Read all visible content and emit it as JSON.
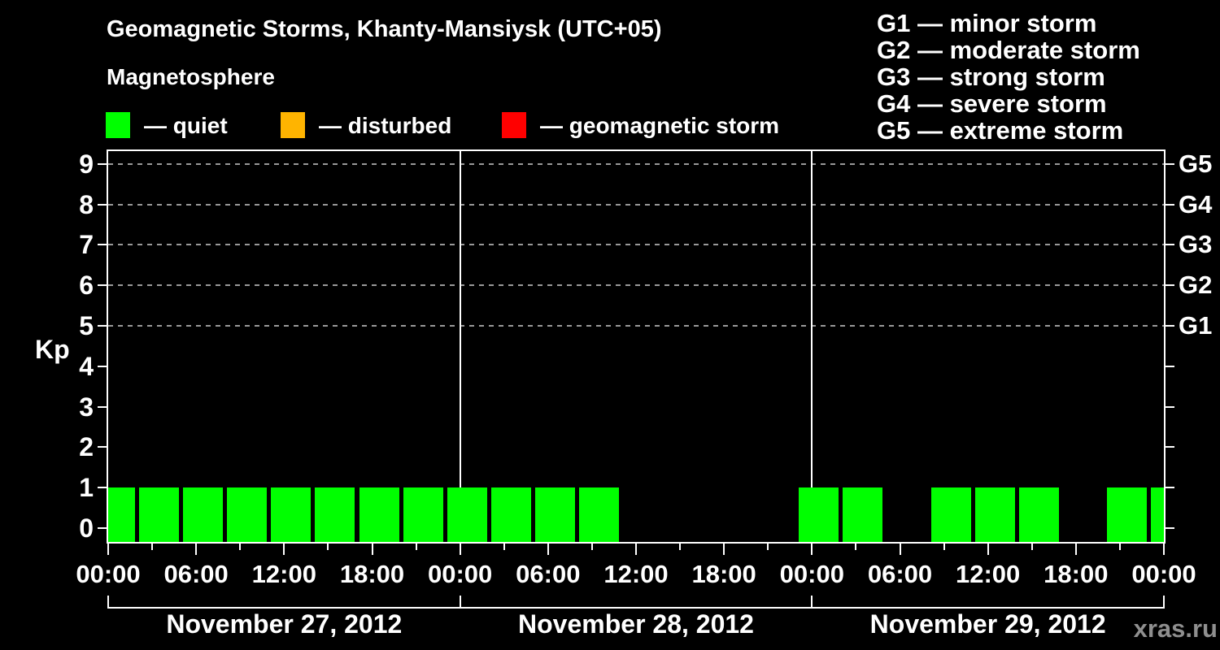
{
  "title": "Geomagnetic Storms, Khanty-Mansiysk (UTC+05)",
  "subtitle": "Magnetosphere",
  "y_axis_title": "Kp",
  "watermark": "xras.ru",
  "colors": {
    "background": "#000000",
    "axis": "#ffffff",
    "grid": "#999999",
    "quiet": "#00ff00",
    "disturbed": "#ffb400",
    "storm": "#ff0000",
    "watermark_gray": "#8f8f8f"
  },
  "status_legend": [
    {
      "status": "quiet",
      "label": "— quiet",
      "color": "#00ff00"
    },
    {
      "status": "disturbed",
      "label": "— disturbed",
      "color": "#ffb400"
    },
    {
      "status": "storm",
      "label": "— geomagnetic storm",
      "color": "#ff0000"
    }
  ],
  "g_scale_legend": [
    {
      "code": "G1",
      "label": "G1 — minor storm",
      "kp": 5
    },
    {
      "code": "G2",
      "label": "G2 — moderate storm",
      "kp": 6
    },
    {
      "code": "G3",
      "label": "G3 — strong storm",
      "kp": 7
    },
    {
      "code": "G4",
      "label": "G4 — severe storm",
      "kp": 8
    },
    {
      "code": "G5",
      "label": "G5 — extreme storm",
      "kp": 9
    }
  ],
  "chart_data": {
    "type": "bar",
    "title": "Geomagnetic Storms, Khanty-Mansiysk (UTC+05)",
    "ylabel": "Kp",
    "ylim": [
      -0.4,
      9.4
    ],
    "y_ticks": [
      0,
      1,
      2,
      3,
      4,
      5,
      6,
      7,
      8,
      9
    ],
    "gridlines_at_kp": [
      5,
      6,
      7,
      8,
      9
    ],
    "right_axis_g_labels": [
      {
        "label": "G1",
        "kp": 5
      },
      {
        "label": "G2",
        "kp": 6
      },
      {
        "label": "G3",
        "kp": 7
      },
      {
        "label": "G4",
        "kp": 8
      },
      {
        "label": "G5",
        "kp": 9
      }
    ],
    "x_hours_total": 72,
    "bar_interval_hours": 3,
    "x_minor_tick_hours": 3,
    "x_major_tick_hours": 6,
    "x_tick_labels": [
      "00:00",
      "06:00",
      "12:00",
      "18:00",
      "00:00",
      "06:00",
      "12:00",
      "18:00",
      "00:00",
      "06:00",
      "12:00",
      "18:00",
      "00:00"
    ],
    "days": [
      "November 27, 2012",
      "November 28, 2012",
      "November 29, 2012"
    ],
    "bars": [
      {
        "start_hour": 0,
        "kp": 1,
        "status": "quiet"
      },
      {
        "start_hour": 3,
        "kp": 1,
        "status": "quiet"
      },
      {
        "start_hour": 6,
        "kp": 1,
        "status": "quiet"
      },
      {
        "start_hour": 9,
        "kp": 1,
        "status": "quiet"
      },
      {
        "start_hour": 12,
        "kp": 1,
        "status": "quiet"
      },
      {
        "start_hour": 15,
        "kp": 1,
        "status": "quiet"
      },
      {
        "start_hour": 18,
        "kp": 1,
        "status": "quiet"
      },
      {
        "start_hour": 21,
        "kp": 1,
        "status": "quiet"
      },
      {
        "start_hour": 24,
        "kp": 1,
        "status": "quiet"
      },
      {
        "start_hour": 27,
        "kp": 1,
        "status": "quiet"
      },
      {
        "start_hour": 30,
        "kp": 1,
        "status": "quiet"
      },
      {
        "start_hour": 33,
        "kp": 1,
        "status": "quiet"
      },
      {
        "start_hour": 48,
        "kp": 1,
        "status": "quiet"
      },
      {
        "start_hour": 51,
        "kp": 1,
        "status": "quiet"
      },
      {
        "start_hour": 57,
        "kp": 1,
        "status": "quiet"
      },
      {
        "start_hour": 60,
        "kp": 1,
        "status": "quiet"
      },
      {
        "start_hour": 63,
        "kp": 1,
        "status": "quiet"
      },
      {
        "start_hour": 69,
        "kp": 1,
        "status": "quiet"
      },
      {
        "start_hour": 72,
        "kp": 1,
        "status": "quiet",
        "clipped_at_edge": true
      }
    ]
  }
}
